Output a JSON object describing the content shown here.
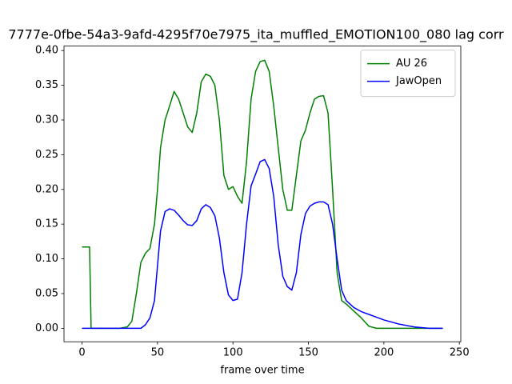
{
  "chart_data": {
    "type": "line",
    "title": "7777e-0fbe-54a3-9afd-4295f70e7975_ita_muffled_EMOTION100_080  lag corr",
    "x_label": "frame over time",
    "x": [
      0,
      5,
      6,
      10,
      15,
      20,
      25,
      30,
      33,
      36,
      39,
      42,
      45,
      48,
      50,
      52,
      55,
      58,
      61,
      64,
      67,
      70,
      73,
      76,
      79,
      82,
      85,
      88,
      91,
      94,
      97,
      100,
      103,
      106,
      109,
      112,
      115,
      118,
      121,
      124,
      127,
      130,
      133,
      136,
      139,
      142,
      145,
      148,
      151,
      154,
      157,
      160,
      163,
      166,
      169,
      172,
      175,
      180,
      185,
      190,
      195,
      200,
      210,
      220,
      230,
      239
    ],
    "series": [
      {
        "name": "AU 26",
        "color": "#008000",
        "values": [
          0.117,
          0.117,
          0,
          0,
          0,
          0,
          0,
          0.002,
          0.01,
          0.05,
          0.095,
          0.108,
          0.115,
          0.15,
          0.2,
          0.26,
          0.3,
          0.32,
          0.341,
          0.33,
          0.31,
          0.29,
          0.282,
          0.31,
          0.355,
          0.366,
          0.363,
          0.35,
          0.3,
          0.22,
          0.2,
          0.204,
          0.19,
          0.18,
          0.24,
          0.33,
          0.37,
          0.384,
          0.386,
          0.37,
          0.32,
          0.26,
          0.2,
          0.17,
          0.17,
          0.22,
          0.27,
          0.285,
          0.31,
          0.33,
          0.334,
          0.335,
          0.31,
          0.2,
          0.08,
          0.04,
          0.035,
          0.025,
          0.015,
          0.003,
          0,
          0,
          0,
          0,
          0,
          0
        ]
      },
      {
        "name": "JawOpen",
        "color": "#0000ff",
        "values": [
          0,
          0,
          0,
          0,
          0,
          0,
          0,
          0,
          0,
          0,
          0,
          0.005,
          0.015,
          0.04,
          0.09,
          0.14,
          0.168,
          0.172,
          0.17,
          0.163,
          0.155,
          0.149,
          0.148,
          0.155,
          0.172,
          0.178,
          0.174,
          0.162,
          0.13,
          0.08,
          0.048,
          0.04,
          0.042,
          0.08,
          0.15,
          0.205,
          0.222,
          0.24,
          0.243,
          0.23,
          0.19,
          0.12,
          0.075,
          0.06,
          0.055,
          0.08,
          0.135,
          0.165,
          0.176,
          0.18,
          0.182,
          0.182,
          0.178,
          0.15,
          0.1,
          0.055,
          0.04,
          0.03,
          0.024,
          0.02,
          0.016,
          0.012,
          0.006,
          0.002,
          0,
          0
        ]
      }
    ],
    "xlim": [
      -11.95,
      250.95
    ],
    "xticks": [
      0,
      50,
      100,
      150,
      200,
      250
    ],
    "ylim": [
      -0.0194,
      0.4064
    ],
    "yticks": [
      {
        "value": 0,
        "label": "0.00"
      },
      {
        "value": 0.05,
        "label": "0.05"
      },
      {
        "value": 0.1,
        "label": "0.10"
      },
      {
        "value": 0.15,
        "label": "0.15"
      },
      {
        "value": 0.2,
        "label": "0.20"
      },
      {
        "value": 0.25,
        "label": "0.25"
      },
      {
        "value": 0.3,
        "label": "0.30"
      },
      {
        "value": 0.35,
        "label": "0.35"
      },
      {
        "value": 0.4,
        "label": "0.40"
      }
    ],
    "legend": "upper right"
  }
}
